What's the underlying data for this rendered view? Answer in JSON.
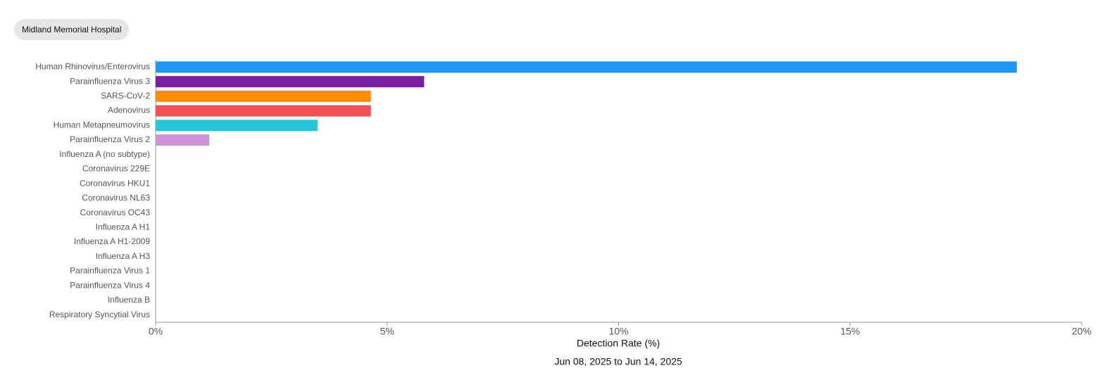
{
  "header": {
    "badge": "Midland Memorial Hospital"
  },
  "chart_data": {
    "type": "bar",
    "orientation": "horizontal",
    "categories": [
      "Human Rhinovirus/Enterovirus",
      "Parainfluenza Virus 3",
      "SARS-CoV-2",
      "Adenovirus",
      "Human Metapneumovirus",
      "Parainfluenza Virus 2",
      "Influenza A (no subtype)",
      "Coronavirus 229E",
      "Coronavirus HKU1",
      "Coronavirus NL63",
      "Coronavirus OC43",
      "Influenza A H1",
      "Influenza A H1-2009",
      "Influenza A H3",
      "Parainfluenza Virus 1",
      "Parainfluenza Virus 4",
      "Influenza B",
      "Respiratory Syncytial Virus"
    ],
    "values": [
      18.6,
      5.8,
      4.65,
      4.65,
      3.5,
      1.16,
      0,
      0,
      0,
      0,
      0,
      0,
      0,
      0,
      0,
      0,
      0,
      0
    ],
    "colors": [
      "#2196f3",
      "#7b1fa2",
      "#ff8c00",
      "#f05454",
      "#26c6da",
      "#ce93d8",
      "#999999",
      "#999999",
      "#999999",
      "#999999",
      "#999999",
      "#999999",
      "#999999",
      "#999999",
      "#999999",
      "#999999",
      "#999999",
      "#999999"
    ],
    "xlim": [
      0,
      20
    ],
    "xticks": [
      {
        "value": 0,
        "label": "0%"
      },
      {
        "value": 5,
        "label": "5%"
      },
      {
        "value": 10,
        "label": "10%"
      },
      {
        "value": 15,
        "label": "15%"
      },
      {
        "value": 20,
        "label": "20%"
      }
    ],
    "x_label": "Detection Rate (%)",
    "subtitle": "Jun 08, 2025 to Jun 14, 2025"
  }
}
